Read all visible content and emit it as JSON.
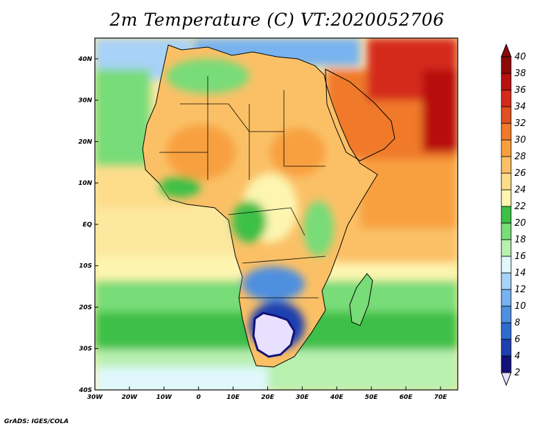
{
  "title": "2m Temperature (C) VT:2020052706",
  "credit": "GrADS: IGES/COLA",
  "axes": {
    "lat_labels": [
      "40N",
      "30N",
      "20N",
      "10N",
      "EQ",
      "10S",
      "20S",
      "30S",
      "40S"
    ],
    "lon_labels": [
      "30W",
      "20W",
      "10W",
      "0",
      "10E",
      "20E",
      "30E",
      "40E",
      "50E",
      "60E",
      "70E"
    ],
    "lat_range": [
      -40,
      45
    ],
    "lon_range": [
      -30,
      75
    ]
  },
  "colorbar": {
    "labels": [
      "2",
      "4",
      "6",
      "8",
      "10",
      "12",
      "14",
      "16",
      "18",
      "20",
      "22",
      "24",
      "26",
      "28",
      "30",
      "32",
      "34",
      "36",
      "38",
      "40"
    ],
    "colors": [
      "#e8e0ff",
      "#12127a",
      "#1f3fb0",
      "#2f6ad0",
      "#4f8fe0",
      "#78b2ef",
      "#a8d2f8",
      "#e0f8fc",
      "#b8f0b0",
      "#78dc78",
      "#3cc046",
      "#fdf5b0",
      "#fddc8a",
      "#fbc066",
      "#f8a040",
      "#f07a2a",
      "#e05020",
      "#d42a1a",
      "#b81010",
      "#8c0a0a"
    ]
  }
}
